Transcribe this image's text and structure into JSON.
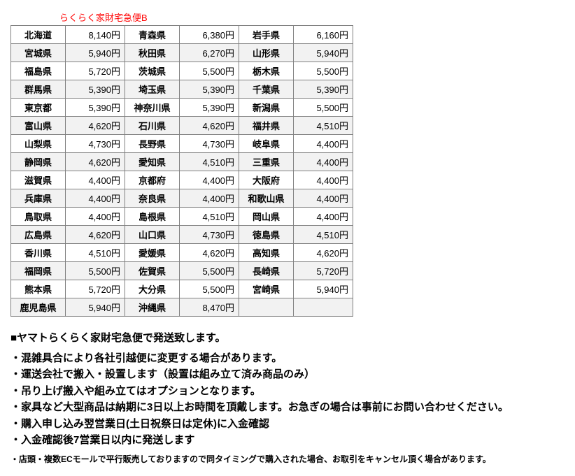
{
  "title": "らくらく家財宅急便B",
  "currency_suffix": "円",
  "rows": [
    {
      "shaded": false,
      "cells": [
        [
          "北海道",
          "8,140"
        ],
        [
          "青森県",
          "6,380"
        ],
        [
          "岩手県",
          "6,160"
        ]
      ]
    },
    {
      "shaded": true,
      "cells": [
        [
          "宮城県",
          "5,940"
        ],
        [
          "秋田県",
          "6,270"
        ],
        [
          "山形県",
          "5,940"
        ]
      ]
    },
    {
      "shaded": false,
      "cells": [
        [
          "福島県",
          "5,720"
        ],
        [
          "茨城県",
          "5,500"
        ],
        [
          "栃木県",
          "5,500"
        ]
      ]
    },
    {
      "shaded": true,
      "cells": [
        [
          "群馬県",
          "5,390"
        ],
        [
          "埼玉県",
          "5,390"
        ],
        [
          "千葉県",
          "5,390"
        ]
      ]
    },
    {
      "shaded": false,
      "cells": [
        [
          "東京都",
          "5,390"
        ],
        [
          "神奈川県",
          "5,390"
        ],
        [
          "新潟県",
          "5,500"
        ]
      ]
    },
    {
      "shaded": true,
      "cells": [
        [
          "富山県",
          "4,620"
        ],
        [
          "石川県",
          "4,620"
        ],
        [
          "福井県",
          "4,510"
        ]
      ]
    },
    {
      "shaded": false,
      "cells": [
        [
          "山梨県",
          "4,730"
        ],
        [
          "長野県",
          "4,730"
        ],
        [
          "岐阜県",
          "4,400"
        ]
      ]
    },
    {
      "shaded": true,
      "cells": [
        [
          "静岡県",
          "4,620"
        ],
        [
          "愛知県",
          "4,510"
        ],
        [
          "三重県",
          "4,400"
        ]
      ]
    },
    {
      "shaded": false,
      "cells": [
        [
          "滋賀県",
          "4,400"
        ],
        [
          "京都府",
          "4,400"
        ],
        [
          "大阪府",
          "4,400"
        ]
      ]
    },
    {
      "shaded": true,
      "cells": [
        [
          "兵庫県",
          "4,400"
        ],
        [
          "奈良県",
          "4,400"
        ],
        [
          "和歌山県",
          "4,400"
        ]
      ]
    },
    {
      "shaded": false,
      "cells": [
        [
          "鳥取県",
          "4,400"
        ],
        [
          "島根県",
          "4,510"
        ],
        [
          "岡山県",
          "4,400"
        ]
      ]
    },
    {
      "shaded": true,
      "cells": [
        [
          "広島県",
          "4,620"
        ],
        [
          "山口県",
          "4,730"
        ],
        [
          "徳島県",
          "4,510"
        ]
      ]
    },
    {
      "shaded": false,
      "cells": [
        [
          "香川県",
          "4,510"
        ],
        [
          "愛媛県",
          "4,620"
        ],
        [
          "高知県",
          "4,620"
        ]
      ]
    },
    {
      "shaded": true,
      "cells": [
        [
          "福岡県",
          "5,500"
        ],
        [
          "佐賀県",
          "5,500"
        ],
        [
          "長崎県",
          "5,720"
        ]
      ]
    },
    {
      "shaded": false,
      "cells": [
        [
          "熊本県",
          "5,720"
        ],
        [
          "大分県",
          "5,500"
        ],
        [
          "宮崎県",
          "5,940"
        ]
      ]
    },
    {
      "shaded": true,
      "cells": [
        [
          "鹿児島県",
          "5,940"
        ],
        [
          "沖縄県",
          "8,470"
        ],
        [
          "",
          ""
        ]
      ]
    }
  ],
  "notes_heading": "■ヤマトらくらく家財宅急便で発送致します。",
  "notes": [
    "混雑具合により各社引越便に変更する場合があります。",
    "運送会社で搬入・設置します（設置は組み立て済み商品のみ）",
    "吊り上げ搬入や組み立てはオプションとなります。",
    "家具など大型商品は納期に3日以上お時間を頂戴します。お急ぎの場合は事前にお問い合わせください。",
    "購入申し込み翌営業日(土日祝祭日は定休)に入金確認",
    "入金確認後7営業日以内に発送します"
  ],
  "footnote": "店頭・複数ECモールで平行販売しておりますので同タイミングで購入された場合、お取引をキャンセル頂く場合があります。"
}
